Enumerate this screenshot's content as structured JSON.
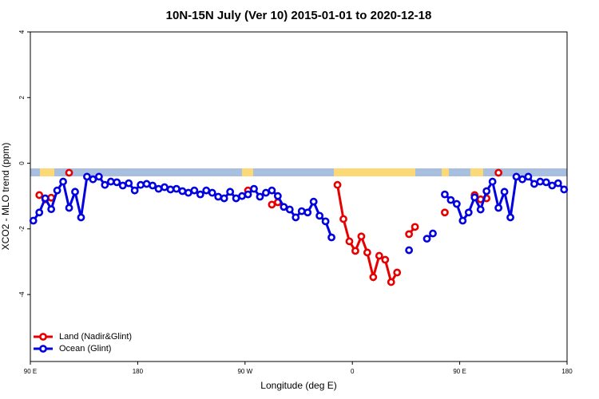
{
  "chart_data": {
    "type": "line",
    "title": "10N-15N July (Ver 10)   2015-01-01 to 2020-12-18",
    "x_label": "Longitude (deg E)",
    "y_label": "XCO2 - MLO trend (ppm)",
    "x": [
      92.5,
      97.5,
      102.5,
      107.5,
      112.5,
      117.5,
      122.5,
      127.5,
      132.5,
      137.5,
      142.5,
      147.5,
      152.5,
      157.5,
      162.5,
      167.5,
      172.5,
      177.5,
      182.5,
      187.5,
      192.5,
      197.5,
      202.5,
      207.5,
      212.5,
      217.5,
      222.5,
      227.5,
      232.5,
      237.5,
      242.5,
      247.5,
      252.5,
      257.5,
      262.5,
      267.5,
      272.5,
      277.5,
      282.5,
      287.5,
      292.5,
      297.5,
      302.5,
      307.5,
      312.5,
      317.5,
      322.5,
      327.5,
      332.5,
      337.5,
      342.5,
      347.5,
      352.5,
      357.5,
      362.5,
      367.5,
      372.5,
      377.5,
      382.5,
      387.5,
      392.5,
      397.5,
      402.5,
      407.5,
      412.5,
      417.5,
      422.5,
      427.5,
      432.5,
      437.5,
      442.5,
      447.5,
      452.5,
      457.5,
      462.5,
      467.5,
      472.5,
      477.5,
      482.5,
      487.5,
      492.5,
      497.5,
      502.5,
      507.5,
      512.5,
      517.5,
      522.5,
      527.5,
      532.5,
      537.5
    ],
    "series": [
      {
        "name": "Land (Nadir&Glint)",
        "color": "#e60000",
        "values": [
          null,
          -0.97,
          -1.1,
          -1.05,
          null,
          null,
          -0.29,
          null,
          null,
          null,
          null,
          null,
          null,
          null,
          null,
          null,
          null,
          null,
          null,
          null,
          null,
          null,
          null,
          null,
          null,
          null,
          null,
          null,
          null,
          null,
          null,
          null,
          null,
          null,
          null,
          null,
          -0.83,
          null,
          null,
          null,
          -1.26,
          -1.19,
          null,
          null,
          null,
          null,
          null,
          null,
          null,
          null,
          null,
          -0.66,
          -1.7,
          -2.38,
          -2.67,
          -2.23,
          -2.72,
          -3.47,
          -2.82,
          -2.94,
          -3.62,
          -3.33,
          null,
          -2.16,
          -1.94,
          null,
          null,
          null,
          null,
          -1.5,
          null,
          null,
          null,
          null,
          -0.97,
          -1.1,
          -1.07,
          null,
          -0.29,
          null,
          null,
          null,
          null,
          null,
          null,
          null,
          null,
          null,
          null,
          null
        ]
      },
      {
        "name": "Ocean (Glint)",
        "color": "#0000e0",
        "values": [
          -1.75,
          -1.5,
          -1.07,
          -1.4,
          -0.83,
          -0.56,
          -1.36,
          -0.87,
          -1.65,
          -0.41,
          -0.49,
          -0.41,
          -0.66,
          -0.56,
          -0.58,
          -0.68,
          -0.61,
          -0.83,
          -0.66,
          -0.63,
          -0.68,
          -0.78,
          -0.73,
          -0.8,
          -0.78,
          -0.85,
          -0.9,
          -0.83,
          -0.95,
          -0.83,
          -0.9,
          -1.02,
          -1.07,
          -0.87,
          -1.07,
          -1.0,
          -0.95,
          -0.78,
          -1.02,
          -0.9,
          -0.83,
          -1.0,
          -1.33,
          -1.41,
          -1.65,
          -1.46,
          -1.5,
          -1.17,
          -1.6,
          -1.77,
          -2.26,
          null,
          null,
          null,
          null,
          null,
          null,
          null,
          null,
          null,
          null,
          null,
          null,
          -2.65,
          null,
          null,
          -2.3,
          -2.14,
          null,
          -0.95,
          -1.12,
          -1.24,
          -1.75,
          -1.5,
          -1.04,
          -1.41,
          -0.85,
          -0.56,
          -1.36,
          -0.87,
          -1.65,
          -0.41,
          -0.49,
          -0.41,
          -0.63,
          -0.56,
          -0.58,
          -0.68,
          -0.61,
          -0.8
        ]
      }
    ],
    "xlim": [
      90,
      540
    ],
    "xticks": [
      {
        "value": 90,
        "label": "90 E"
      },
      {
        "value": 180,
        "label": "180"
      },
      {
        "value": 270,
        "label": "90 W"
      },
      {
        "value": 360,
        "label": "0"
      },
      {
        "value": 450,
        "label": "90 E"
      },
      {
        "value": 540,
        "label": "180"
      }
    ],
    "ylim": [
      -6.04,
      4
    ],
    "yticks": [
      -4,
      -2,
      0,
      2,
      4
    ],
    "legend": "bottom-left"
  }
}
